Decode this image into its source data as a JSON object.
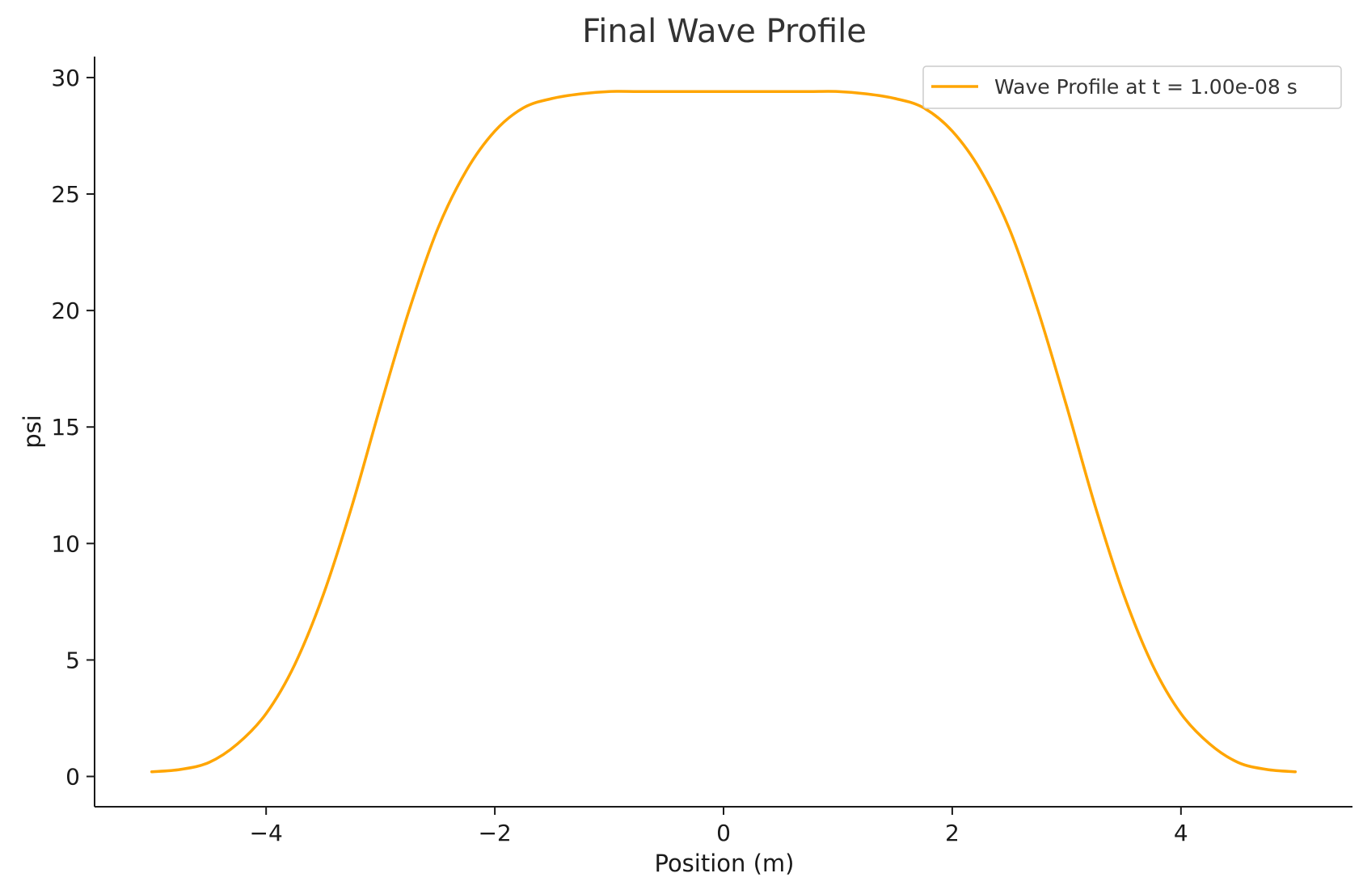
{
  "chart_data": {
    "type": "line",
    "title": "Final Wave Profile",
    "xlabel": "Position (m)",
    "ylabel": "psi",
    "xlim": [
      -5.5,
      5.5
    ],
    "ylim": [
      -1.3,
      30.9
    ],
    "xticks": [
      -4,
      -2,
      0,
      2,
      4
    ],
    "xtick_labels": [
      "−4",
      "−2",
      "0",
      "2",
      "4"
    ],
    "yticks": [
      0,
      5,
      10,
      15,
      20,
      25,
      30
    ],
    "ytick_labels": [
      "0",
      "5",
      "10",
      "15",
      "20",
      "25",
      "30"
    ],
    "grid": false,
    "legend_position": "top-right",
    "series": [
      {
        "name": "Wave Profile at t = 1.00e-08 s",
        "color": "#FFA500",
        "x": [
          -5.0,
          -4.75,
          -4.5,
          -4.25,
          -4.0,
          -3.75,
          -3.5,
          -3.25,
          -3.0,
          -2.75,
          -2.5,
          -2.25,
          -2.0,
          -1.75,
          -1.5,
          -1.25,
          -1.0,
          -0.75,
          -0.5,
          -0.25,
          0.0,
          0.25,
          0.5,
          0.75,
          1.0,
          1.25,
          1.5,
          1.75,
          2.0,
          2.25,
          2.5,
          2.75,
          3.0,
          3.25,
          3.5,
          3.75,
          4.0,
          4.25,
          4.5,
          4.75,
          5.0
        ],
        "y": [
          0.2,
          0.3,
          0.6,
          1.4,
          2.7,
          4.8,
          7.8,
          11.6,
          15.9,
          20.0,
          23.5,
          26.0,
          27.7,
          28.7,
          29.1,
          29.3,
          29.4,
          29.4,
          29.4,
          29.4,
          29.4,
          29.4,
          29.4,
          29.4,
          29.4,
          29.3,
          29.1,
          28.7,
          27.7,
          26.0,
          23.5,
          20.0,
          15.9,
          11.6,
          7.8,
          4.8,
          2.7,
          1.4,
          0.6,
          0.3,
          0.2
        ]
      }
    ]
  }
}
